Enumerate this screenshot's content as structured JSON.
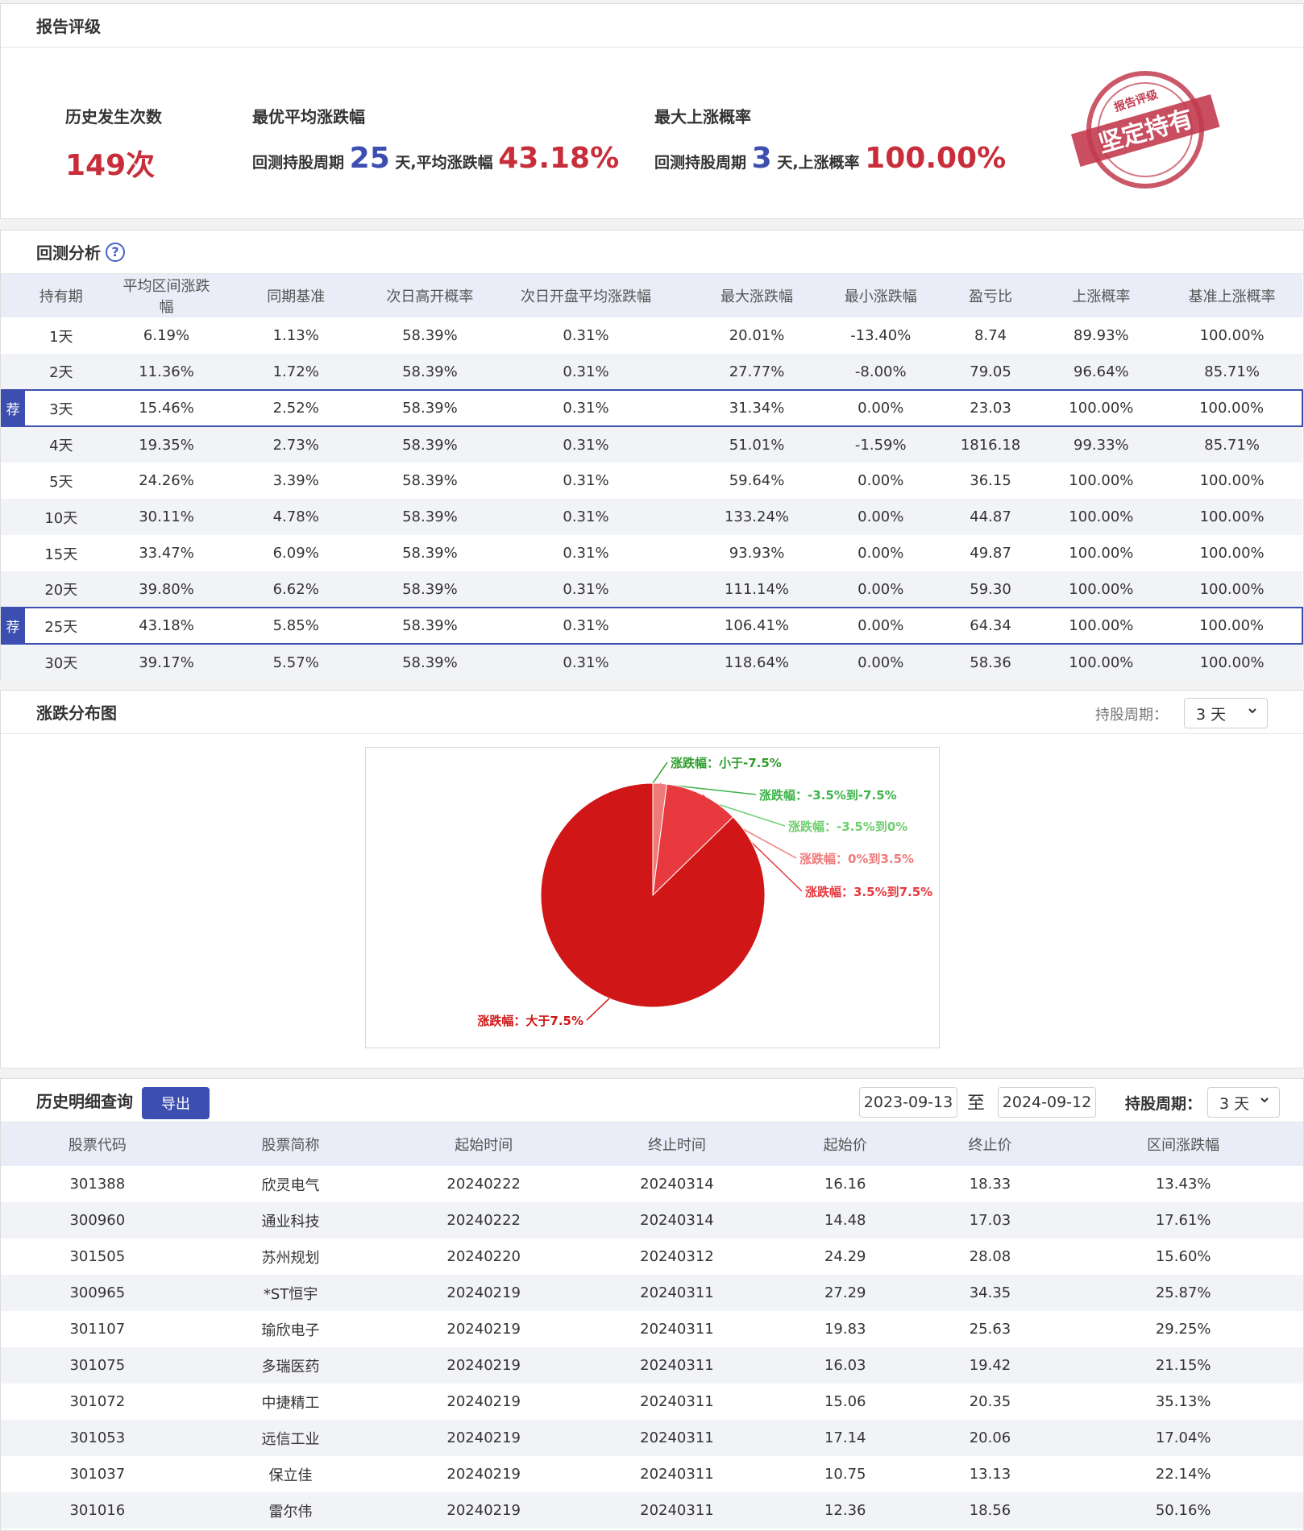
{
  "rating": {
    "title": "报告评级",
    "history_count_label": "历史发生次数",
    "history_count_value": "149次",
    "best_avg_label": "最优平均涨跌幅",
    "best_avg_prefix": "回测持股周期",
    "best_avg_days": "25",
    "best_avg_mid": "天,平均涨跌幅",
    "best_avg_value": "43.18%",
    "max_up_label": "最大上涨概率",
    "max_up_prefix": "回测持股周期",
    "max_up_days": "3",
    "max_up_mid": "天,上涨概率",
    "max_up_value": "100.00%",
    "stamp_top": "报告评级",
    "stamp_main": "坚定持有"
  },
  "backtest": {
    "title": "回测分析",
    "help_icon": "?",
    "badge": "荐",
    "columns": [
      "持有期",
      "平均区间涨跌幅",
      "同期基准",
      "次日高开概率",
      "次日开盘平均涨跌幅",
      "最大涨跌幅",
      "最小涨跌幅",
      "盈亏比",
      "上涨概率",
      "基准上涨概率"
    ],
    "rows": [
      {
        "cells": [
          "1天",
          "6.19%",
          "1.13%",
          "58.39%",
          "0.31%",
          "20.01%",
          "-13.40%",
          "8.74",
          "89.93%",
          "100.00%"
        ],
        "rec": false
      },
      {
        "cells": [
          "2天",
          "11.36%",
          "1.72%",
          "58.39%",
          "0.31%",
          "27.77%",
          "-8.00%",
          "79.05",
          "96.64%",
          "85.71%"
        ],
        "rec": false
      },
      {
        "cells": [
          "3天",
          "15.46%",
          "2.52%",
          "58.39%",
          "0.31%",
          "31.34%",
          "0.00%",
          "23.03",
          "100.00%",
          "100.00%"
        ],
        "rec": true
      },
      {
        "cells": [
          "4天",
          "19.35%",
          "2.73%",
          "58.39%",
          "0.31%",
          "51.01%",
          "-1.59%",
          "1816.18",
          "99.33%",
          "85.71%"
        ],
        "rec": false
      },
      {
        "cells": [
          "5天",
          "24.26%",
          "3.39%",
          "58.39%",
          "0.31%",
          "59.64%",
          "0.00%",
          "36.15",
          "100.00%",
          "100.00%"
        ],
        "rec": false
      },
      {
        "cells": [
          "10天",
          "30.11%",
          "4.78%",
          "58.39%",
          "0.31%",
          "133.24%",
          "0.00%",
          "44.87",
          "100.00%",
          "100.00%"
        ],
        "rec": false
      },
      {
        "cells": [
          "15天",
          "33.47%",
          "6.09%",
          "58.39%",
          "0.31%",
          "93.93%",
          "0.00%",
          "49.87",
          "100.00%",
          "100.00%"
        ],
        "rec": false
      },
      {
        "cells": [
          "20天",
          "39.80%",
          "6.62%",
          "58.39%",
          "0.31%",
          "111.14%",
          "0.00%",
          "59.30",
          "100.00%",
          "100.00%"
        ],
        "rec": false
      },
      {
        "cells": [
          "25天",
          "43.18%",
          "5.85%",
          "58.39%",
          "0.31%",
          "106.41%",
          "0.00%",
          "64.34",
          "100.00%",
          "100.00%"
        ],
        "rec": true
      },
      {
        "cells": [
          "30天",
          "39.17%",
          "5.57%",
          "58.39%",
          "0.31%",
          "118.64%",
          "0.00%",
          "58.36",
          "100.00%",
          "100.00%"
        ],
        "rec": false
      }
    ]
  },
  "distribution": {
    "title": "涨跌分布图",
    "period_label": "持股周期：",
    "period_value": "3 天"
  },
  "chart_data": {
    "type": "pie",
    "slices": [
      {
        "label": "涨跌幅：小于-7.5%",
        "value": 0.0,
        "color": "#2e9e2e"
      },
      {
        "label": "涨跌幅：-3.5%到-7.5%",
        "value": 0.0,
        "color": "#3db34a"
      },
      {
        "label": "涨跌幅：-3.5%到0%",
        "value": 0.0,
        "color": "#6fce6f"
      },
      {
        "label": "涨跌幅：0%到3.5%",
        "value": 2.0,
        "color": "#f07a7a"
      },
      {
        "label": "涨跌幅：3.5%到7.5%",
        "value": 10.7,
        "color": "#e8393f"
      },
      {
        "label": "涨跌幅：大于7.5%",
        "value": 87.3,
        "color": "#d01616"
      }
    ]
  },
  "history": {
    "title": "历史明细查询",
    "export_label": "导出",
    "date_from": "2023-09-13",
    "to_text": "至",
    "date_to": "2024-09-12",
    "period_label": "持股周期：",
    "period_value": "3 天",
    "columns": [
      "股票代码",
      "股票简称",
      "起始时间",
      "终止时间",
      "起始价",
      "终止价",
      "区间涨跌幅"
    ],
    "rows": [
      [
        "301388",
        "欣灵电气",
        "20240222",
        "20240314",
        "16.16",
        "18.33",
        "13.43%"
      ],
      [
        "300960",
        "通业科技",
        "20240222",
        "20240314",
        "14.48",
        "17.03",
        "17.61%"
      ],
      [
        "301505",
        "苏州规划",
        "20240220",
        "20240312",
        "24.29",
        "28.08",
        "15.60%"
      ],
      [
        "300965",
        "*ST恒宇",
        "20240219",
        "20240311",
        "27.29",
        "34.35",
        "25.87%"
      ],
      [
        "301107",
        "瑜欣电子",
        "20240219",
        "20240311",
        "19.83",
        "25.63",
        "29.25%"
      ],
      [
        "301075",
        "多瑞医药",
        "20240219",
        "20240311",
        "16.03",
        "19.42",
        "21.15%"
      ],
      [
        "301072",
        "中捷精工",
        "20240219",
        "20240311",
        "15.06",
        "20.35",
        "35.13%"
      ],
      [
        "301053",
        "远信工业",
        "20240219",
        "20240311",
        "17.14",
        "20.06",
        "17.04%"
      ],
      [
        "301037",
        "保立佳",
        "20240219",
        "20240311",
        "10.75",
        "13.13",
        "22.14%"
      ],
      [
        "301016",
        "雷尔伟",
        "20240219",
        "20240311",
        "12.36",
        "18.56",
        "50.16%"
      ]
    ]
  }
}
